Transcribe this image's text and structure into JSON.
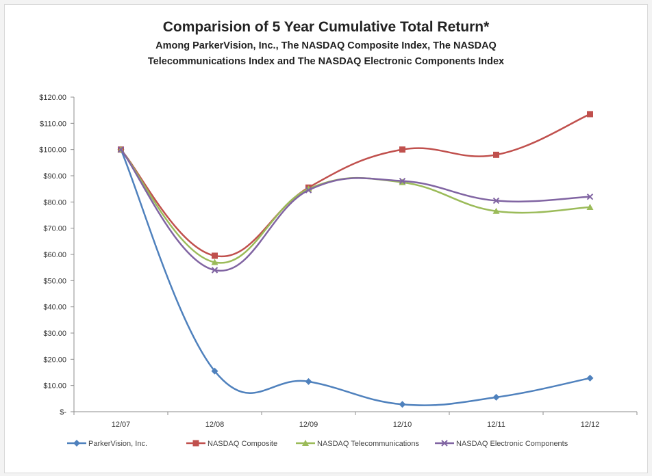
{
  "chart_data": {
    "type": "line",
    "title": "Comparision of 5 Year Cumulative Total Return*",
    "subtitle_line1": "Among ParkerVision, Inc., The NASDAQ Composite Index, The NASDAQ",
    "subtitle_line2": "Telecommunications Index and The NASDAQ Electronic Components Index",
    "categories": [
      "12/07",
      "12/08",
      "12/09",
      "12/10",
      "12/11",
      "12/12"
    ],
    "y_ticks": [
      "$120.00",
      "$110.00",
      "$100.00",
      "$90.00",
      "$80.00",
      "$70.00",
      "$60.00",
      "$50.00",
      "$40.00",
      "$30.00",
      "$20.00",
      "$10.00",
      "$-"
    ],
    "ylim": [
      0,
      120
    ],
    "grid": false,
    "legend_position": "bottom",
    "series": [
      {
        "name": "ParkerVision, Inc.",
        "color": "#4f81bd",
        "marker": "diamond",
        "values": [
          100,
          15.5,
          11.5,
          2.8,
          5.5,
          12.8
        ]
      },
      {
        "name": "NASDAQ Composite",
        "color": "#c0504d",
        "marker": "square",
        "values": [
          100,
          59.5,
          85.5,
          100,
          98,
          113.5
        ]
      },
      {
        "name": "NASDAQ Telecommunications",
        "color": "#9bbb59",
        "marker": "triangle",
        "values": [
          100,
          57,
          85,
          87.5,
          76.5,
          78
        ]
      },
      {
        "name": "NASDAQ Electronic Components",
        "color": "#8064a2",
        "marker": "cross",
        "values": [
          100,
          54,
          84.5,
          88,
          80.5,
          82
        ]
      }
    ]
  }
}
